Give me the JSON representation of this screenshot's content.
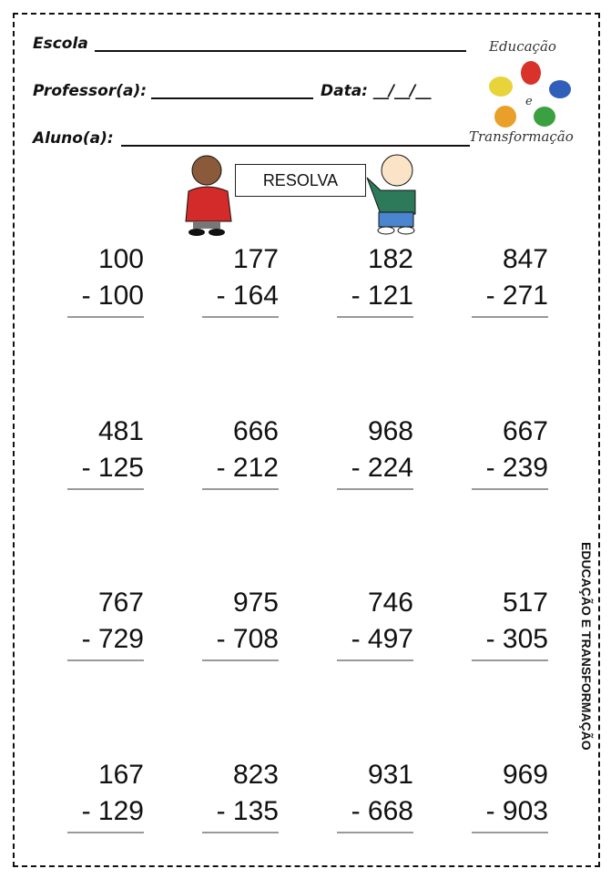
{
  "header": {
    "school_label": "Escola",
    "teacher_label": "Professor(a):",
    "date_label": "Data: __/__/__",
    "student_label": "Aluno(a):"
  },
  "logo": {
    "top_text": "Educação",
    "middle_text": "e",
    "bottom_text": "Transformação",
    "colors": [
      "#e8d33a",
      "#d8322b",
      "#2f5fb8",
      "#e9a02a",
      "#3aa040"
    ]
  },
  "banner": {
    "text": "RESOLVA"
  },
  "side_text": "EDUCAÇÃO E TRANSFORMAÇÃO",
  "problems": [
    [
      {
        "a": "100",
        "b": "- 100"
      },
      {
        "a": "177",
        "b": "- 164"
      },
      {
        "a": "182",
        "b": "- 121"
      },
      {
        "a": "847",
        "b": "- 271"
      }
    ],
    [
      {
        "a": "481",
        "b": "- 125"
      },
      {
        "a": "666",
        "b": "- 212"
      },
      {
        "a": "968",
        "b": "- 224"
      },
      {
        "a": "667",
        "b": "- 239"
      }
    ],
    [
      {
        "a": "767",
        "b": "- 729"
      },
      {
        "a": "975",
        "b": "- 708"
      },
      {
        "a": "746",
        "b": "- 497"
      },
      {
        "a": "517",
        "b": "- 305"
      }
    ],
    [
      {
        "a": "167",
        "b": "- 129"
      },
      {
        "a": "823",
        "b": "- 135"
      },
      {
        "a": "931",
        "b": "- 668"
      },
      {
        "a": "969",
        "b": "- 903"
      }
    ]
  ]
}
